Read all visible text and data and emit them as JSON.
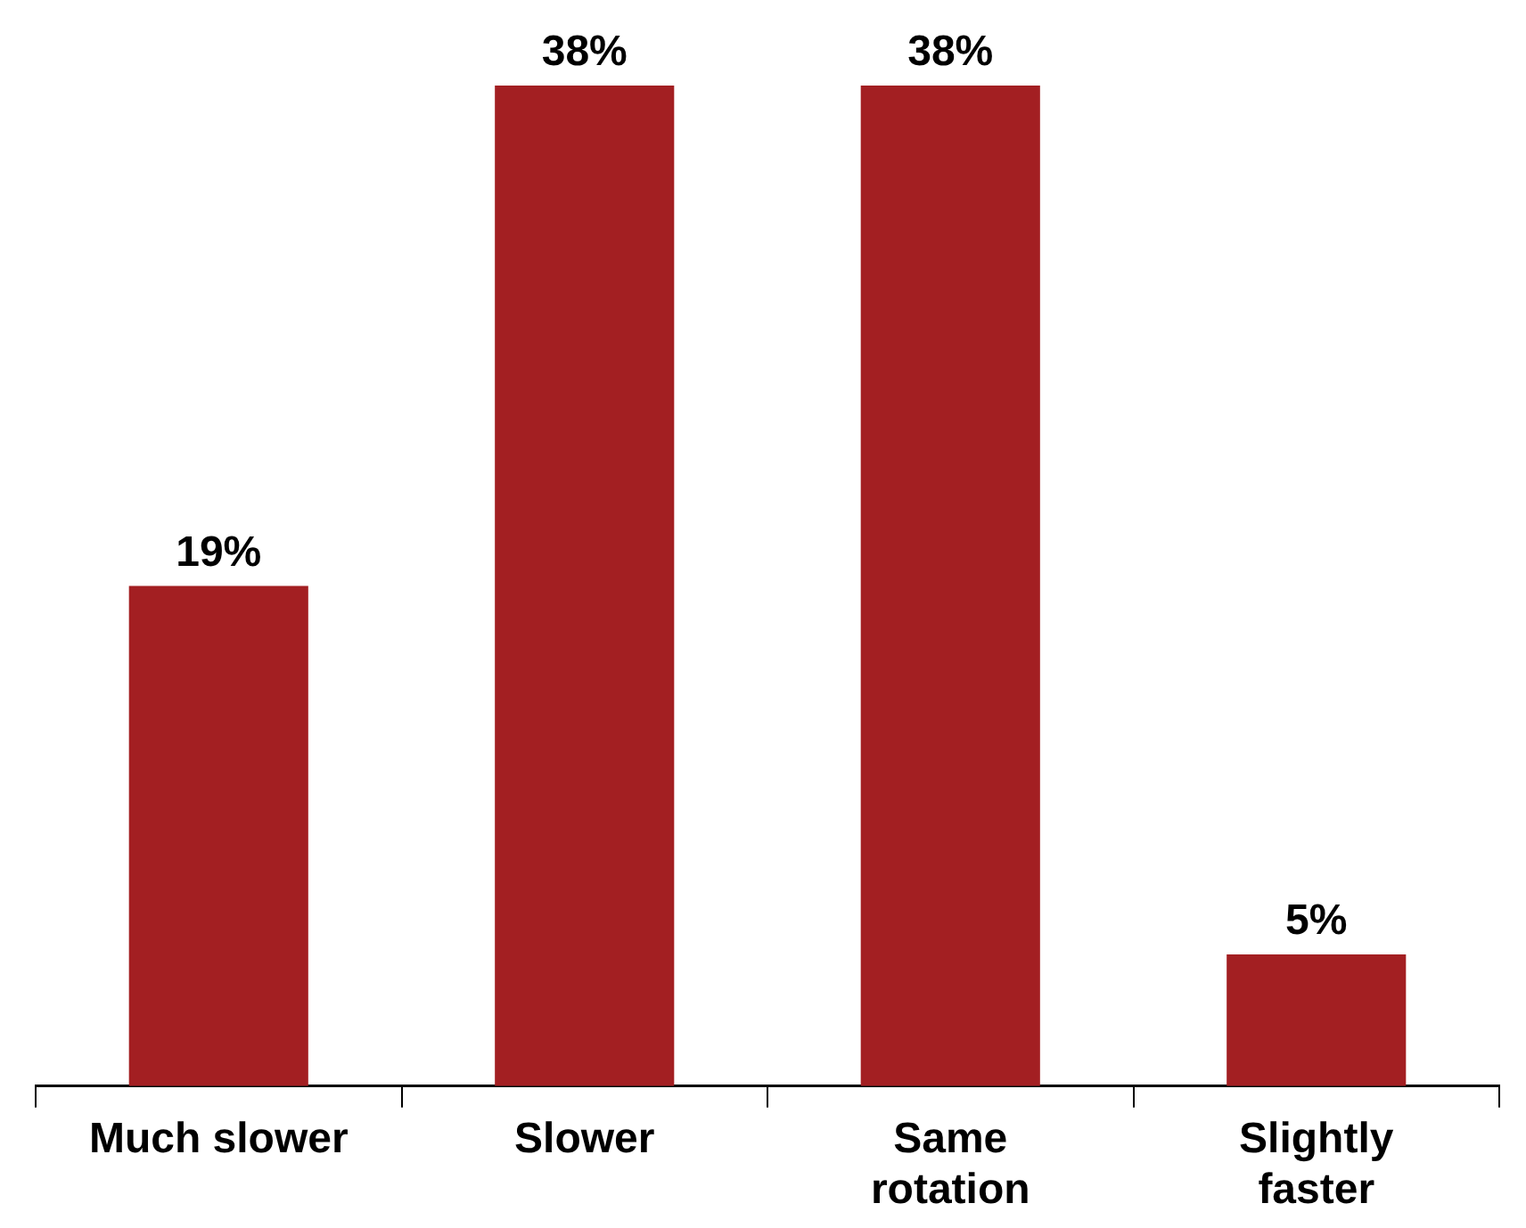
{
  "chart_data": {
    "type": "bar",
    "categories": [
      "Much slower",
      "Slower",
      "Same rotation",
      "Slightly faster"
    ],
    "values": [
      19,
      38,
      38,
      5
    ],
    "color": "#a31f22",
    "value_labels": [
      "19%",
      "38%",
      "38%",
      "5%"
    ],
    "tick_labels": "x",
    "grid": false,
    "legend": false
  }
}
